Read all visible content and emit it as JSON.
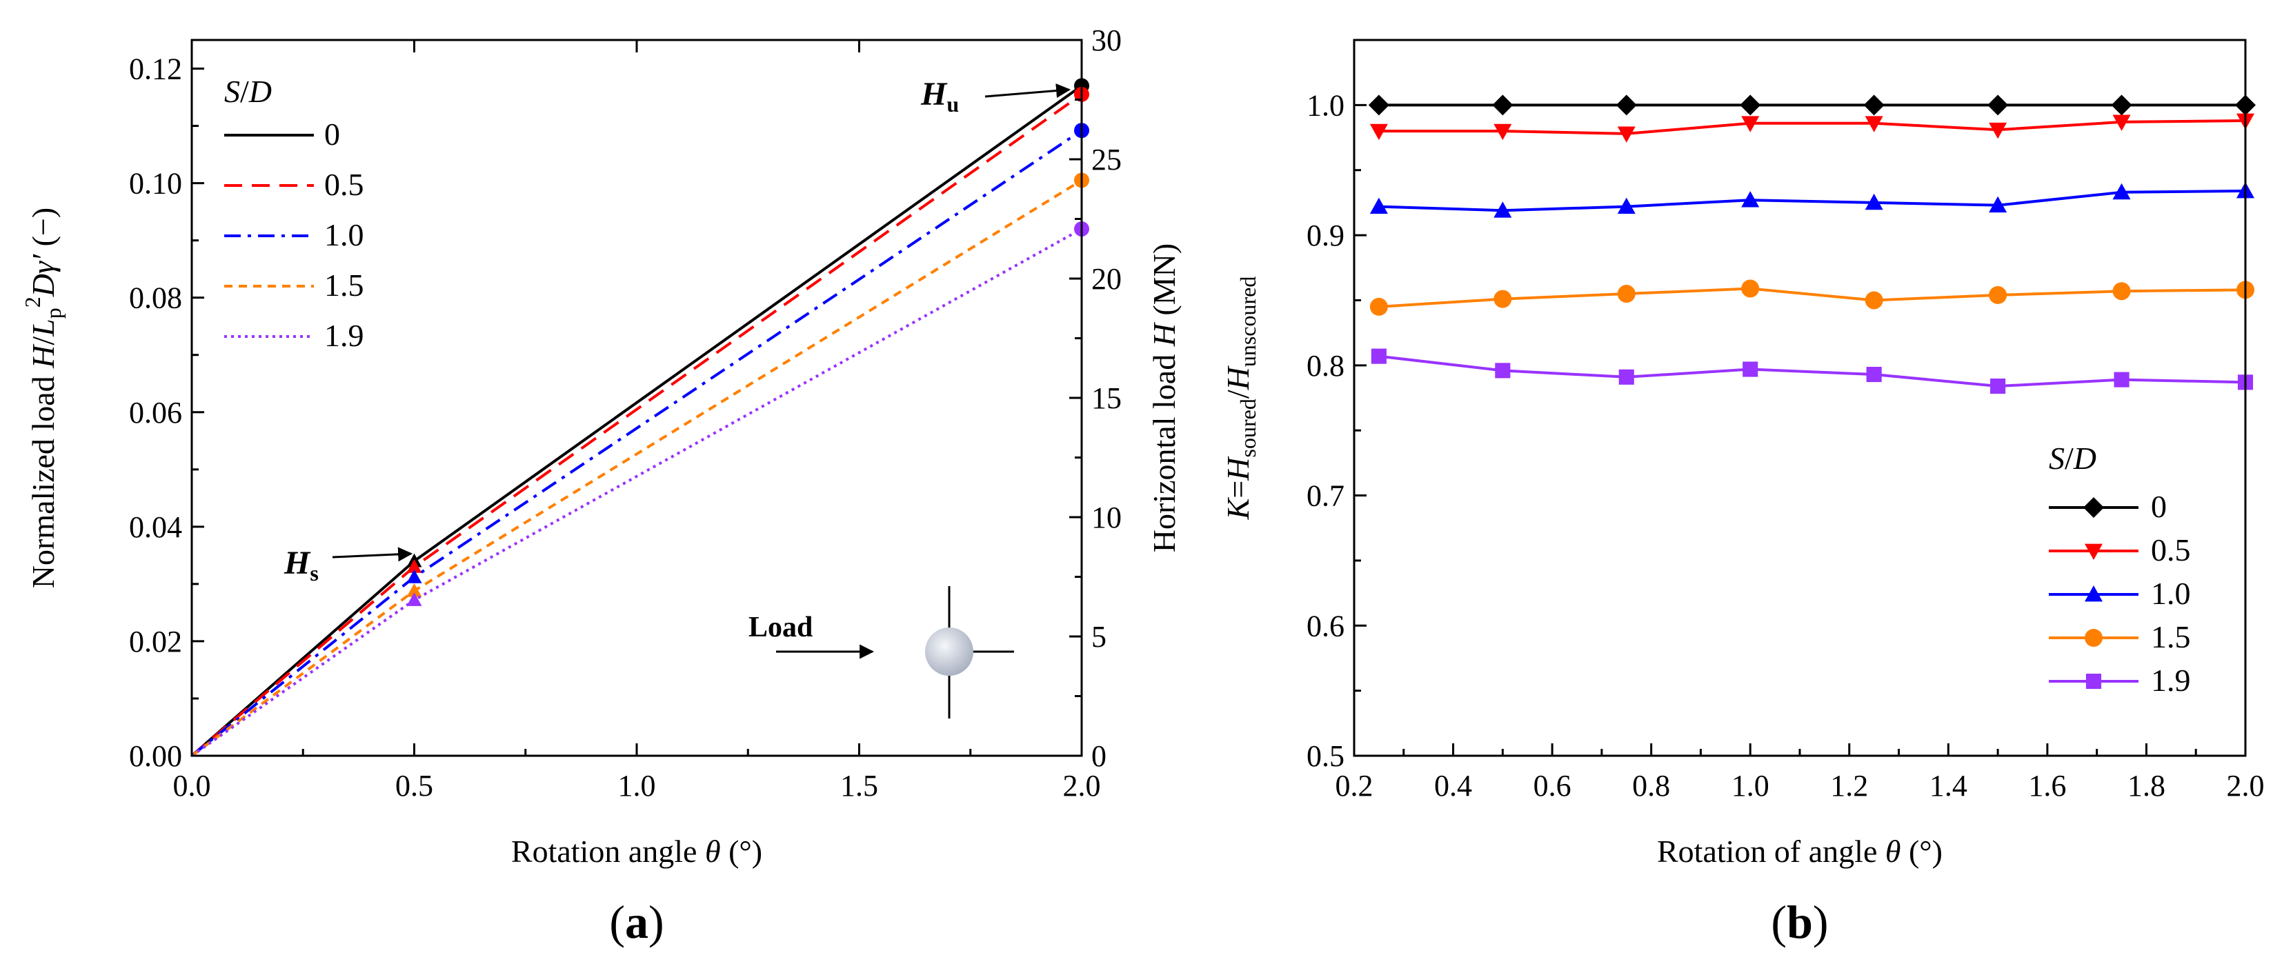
{
  "panel_labels": {
    "a_open": "(",
    "a_letter": "a",
    "a_close": ")",
    "b_open": "(",
    "b_letter": "b",
    "b_close": ")"
  },
  "annotations": {
    "hu_main": "H",
    "hu_sub": "u",
    "hs_main": "H",
    "hs_sub": "s",
    "load": "Load"
  },
  "colors": {
    "0": "#000000",
    "0.5": "#ff0000",
    "1.0": "#0000ff",
    "1.5": "#ff8000",
    "1.9": "#9933ff"
  },
  "chart_data": [
    {
      "id": "a",
      "type": "line",
      "xlabel": {
        "pre": "Rotation angle ",
        "var": "θ",
        "post": " (°)"
      },
      "ylabel": {
        "pre": "Normalized load ",
        "v1": "H",
        "slash": "/",
        "v2": "L",
        "sub": "p",
        "sup": "2",
        "v3": "Dγ′",
        "post": " (−)"
      },
      "y2label": {
        "pre": "Horizontal load ",
        "var": "H",
        "post": " (MN)"
      },
      "xlim": [
        0,
        2.0
      ],
      "ylim": [
        0,
        0.125
      ],
      "y2lim": [
        0,
        30
      ],
      "xticks": [
        "0.0",
        "0.5",
        "1.0",
        "1.5",
        "2.0"
      ],
      "yticks": [
        "0.00",
        "0.02",
        "0.04",
        "0.06",
        "0.08",
        "0.10",
        "0.12"
      ],
      "y2ticks": [
        "0",
        "5",
        "10",
        "15",
        "20",
        "25",
        "30"
      ],
      "legend": {
        "title_var1": "S",
        "title_slash": "/",
        "title_var2": "D",
        "position": "top-left"
      },
      "series": [
        {
          "name": "0",
          "style": "solid",
          "x": [
            0,
            0.5,
            2.0
          ],
          "y": [
            0,
            0.034,
            0.117
          ]
        },
        {
          "name": "0.5",
          "style": "dashed",
          "x": [
            0,
            0.5,
            2.0
          ],
          "y": [
            0,
            0.033,
            0.1155
          ]
        },
        {
          "name": "1.0",
          "style": "dashdot",
          "x": [
            0,
            0.5,
            2.0
          ],
          "y": [
            0,
            0.0312,
            0.1092
          ]
        },
        {
          "name": "1.5",
          "style": "short-dash",
          "x": [
            0,
            0.5,
            2.0
          ],
          "y": [
            0,
            0.0288,
            0.1005
          ]
        },
        {
          "name": "1.9",
          "style": "dotted",
          "x": [
            0,
            0.5,
            2.0
          ],
          "y": [
            0,
            0.0272,
            0.092
          ]
        }
      ]
    },
    {
      "id": "b",
      "type": "line",
      "xlabel": {
        "pre": "Rotation of angle ",
        "var": "θ",
        "post": " (°)"
      },
      "ylabel": {
        "v1": "K",
        "eq": "=",
        "v2": "H",
        "sub1": "soured",
        "slash": "/",
        "v3": "H",
        "sub2": "unscoured"
      },
      "xlim": [
        0.2,
        2.0
      ],
      "ylim": [
        0.5,
        1.05
      ],
      "xticks": [
        "0.2",
        "0.4",
        "0.6",
        "0.8",
        "1.0",
        "1.2",
        "1.4",
        "1.6",
        "1.8",
        "2.0"
      ],
      "yticks": [
        "0.5",
        "0.6",
        "0.7",
        "0.8",
        "0.9",
        "1.0"
      ],
      "legend": {
        "title_var1": "S",
        "title_slash": "/",
        "title_var2": "D",
        "position": "bottom-right"
      },
      "x": [
        0.25,
        0.5,
        0.75,
        1.0,
        1.25,
        1.5,
        1.75,
        2.0
      ],
      "series": [
        {
          "name": "0",
          "marker": "diamond",
          "values": [
            1.0,
            1.0,
            1.0,
            1.0,
            1.0,
            1.0,
            1.0,
            1.0
          ]
        },
        {
          "name": "0.5",
          "marker": "triangle-down",
          "values": [
            0.98,
            0.98,
            0.978,
            0.986,
            0.986,
            0.981,
            0.987,
            0.988
          ]
        },
        {
          "name": "1.0",
          "marker": "triangle-up",
          "values": [
            0.922,
            0.919,
            0.922,
            0.927,
            0.925,
            0.923,
            0.933,
            0.934
          ]
        },
        {
          "name": "1.5",
          "marker": "circle",
          "values": [
            0.845,
            0.851,
            0.855,
            0.859,
            0.85,
            0.854,
            0.857,
            0.858
          ]
        },
        {
          "name": "1.9",
          "marker": "square",
          "values": [
            0.807,
            0.796,
            0.791,
            0.797,
            0.793,
            0.784,
            0.789,
            0.787
          ]
        }
      ]
    }
  ]
}
